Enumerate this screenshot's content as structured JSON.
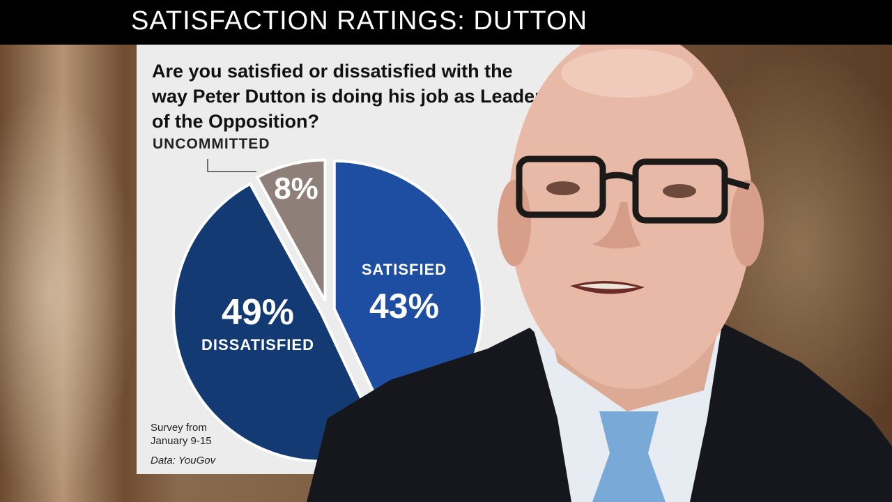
{
  "header": {
    "title": "SATISFACTION RATINGS: DUTTON"
  },
  "chart_data": {
    "type": "pie",
    "title": "Are you satisfied or dissatisfied with the way Peter Dutton is doing his job as Leader of the Opposition?",
    "slices": [
      {
        "label": "SATISFIED",
        "value": 43,
        "display": "43%",
        "color": "#1e4ea2"
      },
      {
        "label": "DISSATISFIED",
        "value": 49,
        "display": "49%",
        "color": "#133a73"
      },
      {
        "label": "UNCOMMITTED",
        "value": 8,
        "display": "8%",
        "color": "#8e7f78"
      }
    ],
    "notes": {
      "survey_line1": "Survey from",
      "survey_line2": "January 9-15",
      "source": "Data: YouGov"
    }
  }
}
